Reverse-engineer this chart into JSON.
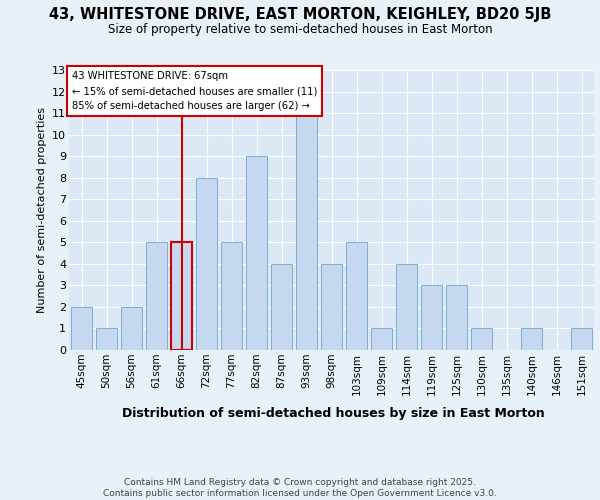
{
  "title": "43, WHITESTONE DRIVE, EAST MORTON, KEIGHLEY, BD20 5JB",
  "subtitle": "Size of property relative to semi-detached houses in East Morton",
  "xlabel": "Distribution of semi-detached houses by size in East Morton",
  "ylabel": "Number of semi-detached properties",
  "categories": [
    "45sqm",
    "50sqm",
    "56sqm",
    "61sqm",
    "66sqm",
    "72sqm",
    "77sqm",
    "82sqm",
    "87sqm",
    "93sqm",
    "98sqm",
    "103sqm",
    "109sqm",
    "114sqm",
    "119sqm",
    "125sqm",
    "130sqm",
    "135sqm",
    "140sqm",
    "146sqm",
    "151sqm"
  ],
  "values": [
    2,
    1,
    2,
    5,
    5,
    8,
    5,
    9,
    4,
    11,
    4,
    5,
    1,
    4,
    3,
    3,
    1,
    0,
    1,
    0,
    1
  ],
  "bar_color": "#c5d8f0",
  "bar_edge_color": "#7bafd4",
  "highlight_index": 4,
  "highlight_color": "#cc0000",
  "annotation_title": "43 WHITESTONE DRIVE: 67sqm",
  "annotation_line1": "← 15% of semi-detached houses are smaller (11)",
  "annotation_line2": "85% of semi-detached houses are larger (62) →",
  "annotation_box_color": "#cc0000",
  "ylim": [
    0,
    13
  ],
  "yticks": [
    0,
    1,
    2,
    3,
    4,
    5,
    6,
    7,
    8,
    9,
    10,
    11,
    12,
    13
  ],
  "footer_line1": "Contains HM Land Registry data © Crown copyright and database right 2025.",
  "footer_line2": "Contains public sector information licensed under the Open Government Licence v3.0.",
  "bg_color": "#e8f0f8",
  "plot_bg_color": "#dce8f5"
}
